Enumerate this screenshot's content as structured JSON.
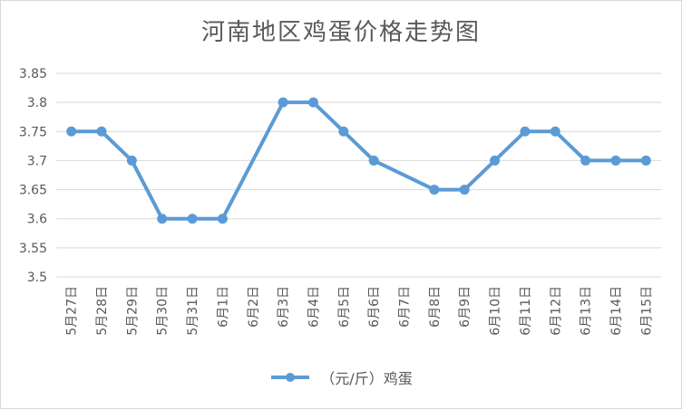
{
  "chart_data": {
    "type": "line",
    "title": "河南地区鸡蛋价格走势图",
    "categories": [
      "5月27日",
      "5月28日",
      "5月29日",
      "5月30日",
      "5月31日",
      "6月1日",
      "6月2日",
      "6月3日",
      "6月4日",
      "6月5日",
      "6月6日",
      "6月7日",
      "6月8日",
      "6月9日",
      "6月10日",
      "6月11日",
      "6月12日",
      "6月13日",
      "6月14日",
      "6月15日"
    ],
    "series": [
      {
        "name": "（元/斤）鸡蛋",
        "color": "#5b9bd5",
        "values": [
          3.75,
          3.75,
          3.7,
          3.6,
          3.6,
          3.6,
          null,
          3.8,
          3.8,
          3.75,
          3.7,
          null,
          3.65,
          3.65,
          3.7,
          3.75,
          3.75,
          3.7,
          3.7,
          3.7
        ]
      }
    ],
    "ylim": [
      3.5,
      3.85
    ],
    "yticks": [
      "3.5",
      "3.55",
      "3.6",
      "3.65",
      "3.7",
      "3.75",
      "3.8",
      "3.85"
    ],
    "grid": true,
    "legend": "bottom"
  }
}
